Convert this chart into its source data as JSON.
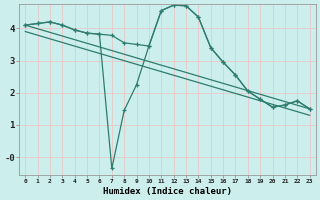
{
  "xlabel": "Humidex (Indice chaleur)",
  "background_color": "#cceeed",
  "grid_color": "#e8c8c8",
  "line_color": "#2e7d6e",
  "xlim": [
    -0.5,
    23.5
  ],
  "ylim": [
    -0.55,
    4.75
  ],
  "yticks": [
    0,
    1,
    2,
    3,
    4
  ],
  "ytick_labels": [
    "-0",
    "1",
    "2",
    "3",
    "4"
  ],
  "xticks": [
    0,
    1,
    2,
    3,
    4,
    5,
    6,
    7,
    8,
    9,
    10,
    11,
    12,
    13,
    14,
    15,
    16,
    17,
    18,
    19,
    20,
    21,
    22,
    23
  ],
  "series1_x": [
    0,
    1,
    2,
    3,
    4,
    5,
    6,
    7,
    8,
    9,
    10,
    11,
    12,
    13,
    14,
    15,
    16,
    17,
    18,
    19,
    20,
    21,
    22,
    23
  ],
  "series1_y": [
    4.1,
    4.15,
    4.2,
    4.1,
    3.95,
    3.85,
    3.82,
    3.78,
    3.55,
    3.5,
    3.45,
    4.55,
    4.72,
    4.7,
    4.35,
    3.4,
    2.95,
    2.55,
    2.05,
    1.8,
    1.55,
    1.62,
    1.75,
    1.5
  ],
  "series2_x": [
    0,
    1,
    2,
    3,
    4,
    5,
    6,
    7,
    8,
    9,
    10,
    11,
    12,
    13,
    14,
    15,
    16,
    17,
    18,
    19,
    20,
    21,
    22,
    23
  ],
  "series2_y": [
    4.1,
    4.15,
    4.2,
    4.1,
    3.95,
    3.85,
    3.82,
    -0.35,
    1.45,
    2.25,
    3.45,
    4.55,
    4.72,
    4.7,
    4.35,
    3.4,
    2.95,
    2.55,
    2.05,
    1.8,
    1.55,
    1.62,
    1.75,
    1.5
  ],
  "line3_x": [
    0,
    23
  ],
  "line3_y": [
    4.1,
    1.5
  ],
  "line4_x": [
    0,
    23
  ],
  "line4_y": [
    3.9,
    1.3
  ]
}
